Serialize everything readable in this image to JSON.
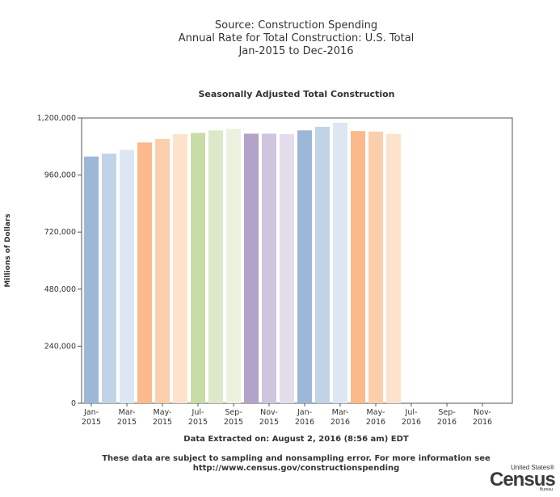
{
  "header": {
    "line1": "Source: Construction Spending",
    "line2": "Annual Rate for Total Construction: U.S. Total",
    "line3": "Jan-2015 to Dec-2016"
  },
  "chart_data": {
    "type": "bar",
    "title": "Seasonally Adjusted Total Construction",
    "ylabel": "Millions of Dollars",
    "xlabel": "",
    "ylim": [
      0,
      1200000
    ],
    "yticks": [
      {
        "value": 0,
        "label": "0"
      },
      {
        "value": 240000,
        "label": "240,000"
      },
      {
        "value": 480000,
        "label": "480,000"
      },
      {
        "value": 720000,
        "label": "720,000"
      },
      {
        "value": 960000,
        "label": "960,000"
      },
      {
        "value": 1200000,
        "label": "1,200,000"
      }
    ],
    "xticks": [
      {
        "index": 0,
        "line1": "Jan-",
        "line2": "2015"
      },
      {
        "index": 2,
        "line1": "Mar-",
        "line2": "2015"
      },
      {
        "index": 4,
        "line1": "May-",
        "line2": "2015"
      },
      {
        "index": 6,
        "line1": "Jul-",
        "line2": "2015"
      },
      {
        "index": 8,
        "line1": "Sep-",
        "line2": "2015"
      },
      {
        "index": 10,
        "line1": "Nov-",
        "line2": "2015"
      },
      {
        "index": 12,
        "line1": "Jan-",
        "line2": "2016"
      },
      {
        "index": 14,
        "line1": "Mar-",
        "line2": "2016"
      },
      {
        "index": 16,
        "line1": "May-",
        "line2": "2016"
      },
      {
        "index": 18,
        "line1": "Jul-",
        "line2": "2016"
      },
      {
        "index": 20,
        "line1": "Sep-",
        "line2": "2016"
      },
      {
        "index": 22,
        "line1": "Nov-",
        "line2": "2016"
      }
    ],
    "categories": [
      "Jan-2015",
      "Feb-2015",
      "Mar-2015",
      "Apr-2015",
      "May-2015",
      "Jun-2015",
      "Jul-2015",
      "Aug-2015",
      "Sep-2015",
      "Oct-2015",
      "Nov-2015",
      "Dec-2015",
      "Jan-2016",
      "Feb-2016",
      "Mar-2016",
      "Apr-2016",
      "May-2016",
      "Jun-2016",
      "Jul-2016",
      "Aug-2016",
      "Sep-2016",
      "Oct-2016",
      "Nov-2016",
      "Dec-2016"
    ],
    "values": [
      1038000,
      1050000,
      1066000,
      1097000,
      1112000,
      1132000,
      1137000,
      1148000,
      1154000,
      1134000,
      1134000,
      1132000,
      1148000,
      1163000,
      1180000,
      1145000,
      1143000,
      1133000,
      null,
      null,
      null,
      null,
      null,
      null
    ],
    "colors": [
      "#9db7d8",
      "#c1d3e6",
      "#dde6f3",
      "#fbb98c",
      "#fbcfac",
      "#fde3cc",
      "#c8dca6",
      "#dde9c8",
      "#ebf2df",
      "#b4a3c8",
      "#cfc5de",
      "#e3ddec",
      "#9db7d8",
      "#c1d3e6",
      "#dde6f3",
      "#fbb98c",
      "#fbcfac",
      "#fde3cc"
    ],
    "grid": false,
    "legend": "none"
  },
  "footer": {
    "extracted": "Data Extracted on: August 2, 2016 (8:56 am) EDT",
    "note_line1": "These data are subject to sampling and nonsampling error. For more information see",
    "note_line2": "http://www.census.gov/constructionspending"
  },
  "logo": {
    "top": "United States®",
    "main": "Census",
    "bottom": "Bureau"
  }
}
